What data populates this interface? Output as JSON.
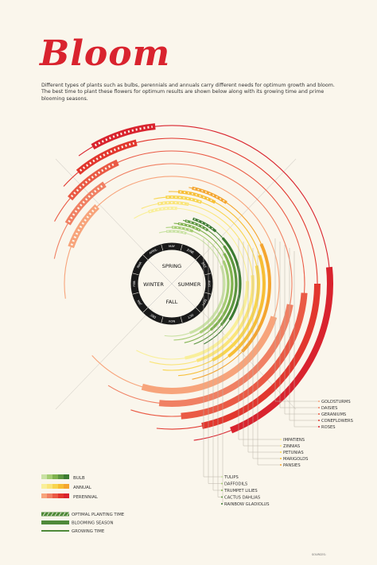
{
  "title": "Bloom",
  "intro": "Different types of plants such as bulbs, perennials and annuals carry different needs for optimum growth and bloom. The best time to plant these flowers for optimum results are shown below along with its growing time and prime blooming seasons.",
  "months": [
    "JAN",
    "FEB",
    "MAR",
    "APRIL",
    "MAY",
    "JUNE",
    "JULY",
    "AUG",
    "SEPT",
    "OCT",
    "NOV",
    "DEC"
  ],
  "seasons": {
    "spring": "SPRING",
    "summer": "SUMMER",
    "fall": "FALL",
    "winter": "WINTER"
  },
  "perennials": [
    "GOLDSTURMS",
    "DAISIES",
    "GERANIUMS",
    "CONEFLOWERS",
    "ROSES"
  ],
  "annuals": [
    "IMPATIENS",
    "ZINNIAS",
    "PETUNIAS",
    "MARIGOLDS",
    "PANSIES"
  ],
  "bulbs": [
    "TULIPS",
    "DAFFODILS",
    "TRUMPET LILIES",
    "CACTUS DAHLIAS",
    "RAINBOW GLADIOLUS"
  ],
  "legend": {
    "types": [
      "BULB",
      "ANNUAL",
      "PERENNIAL"
    ],
    "marks": [
      "OPTIMAL PLANTING TIME",
      "BLOOMING SEASON",
      "GROWING TIME"
    ]
  },
  "sources_label": "SOURCES:",
  "colors": {
    "background": "#faf6ec",
    "title": "#d9232e",
    "perennial": [
      "#f7a47b",
      "#f08063",
      "#ea5a45",
      "#e2372e",
      "#d9232e"
    ],
    "annual": [
      "#f9ef9a",
      "#fae57a",
      "#f8d54e",
      "#f7be35",
      "#f4a52f"
    ],
    "bulb": [
      "#c9e2a4",
      "#a5cd73",
      "#7fb24f",
      "#5c9640",
      "#3b7a32"
    ]
  }
}
